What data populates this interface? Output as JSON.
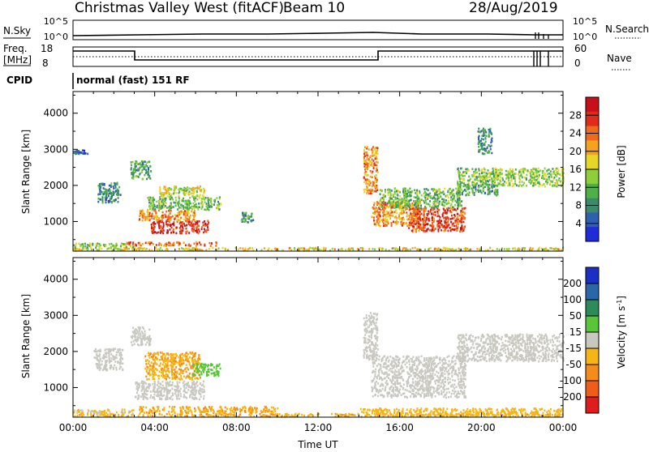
{
  "header": {
    "station": "Christmas Valley West (fitACF)",
    "beam": "Beam 10",
    "date": "28/Aug/2019"
  },
  "panels": {
    "nsky_label": "N.Sky",
    "nsearch_label": "N.Search",
    "freq_label_line1": "Freq.",
    "freq_label_line2": "[MHz]",
    "nave_label": "Nave",
    "cpid_label": "CPID",
    "cpid_value": "normal (fast) 151 RF",
    "noise_ticks_left": [
      "10^5",
      "10^0"
    ],
    "noise_ticks_right": [
      "10^5",
      "10^0"
    ],
    "freq_ticks": [
      "18",
      "8"
    ],
    "nave_ticks": [
      "60",
      "0"
    ]
  },
  "chart_data": [
    {
      "type": "heatmap",
      "title": "",
      "xlabel": "Time UT",
      "ylabel": "Slant Range [km]",
      "colorbar_label": "Power [dB]",
      "x_ticks": [
        "00:00",
        "04:00",
        "08:00",
        "12:00",
        "16:00",
        "20:00",
        "00:00"
      ],
      "y_ticks": [
        1000,
        2000,
        3000,
        4000
      ],
      "ylim": [
        180,
        4600
      ],
      "xlim_hours": [
        0,
        24
      ],
      "colorbar_ticks": [
        4,
        8,
        12,
        16,
        20,
        24,
        28
      ],
      "colorbar_range": [
        0,
        32
      ],
      "colorbar_colors": [
        "#1f2dd6",
        "#2f5fb0",
        "#3c8a6c",
        "#4fb04a",
        "#8ccf3a",
        "#e6d628",
        "#f5a21f",
        "#f06a1c",
        "#e02a1a",
        "#c8101a"
      ],
      "regions": [
        {
          "t": [
            0.0,
            24.0
          ],
          "r": [
            220,
            300
          ],
          "value": 18
        },
        {
          "t": [
            0.0,
            3.0
          ],
          "r": [
            300,
            420
          ],
          "value": 14
        },
        {
          "t": [
            2.5,
            7.0
          ],
          "r": [
            350,
            450
          ],
          "value": 24
        },
        {
          "t": [
            3.8,
            6.6
          ],
          "r": [
            700,
            1050
          ],
          "value": 28
        },
        {
          "t": [
            3.2,
            6.0
          ],
          "r": [
            1050,
            1350
          ],
          "value": 22
        },
        {
          "t": [
            3.6,
            7.2
          ],
          "r": [
            1350,
            1700
          ],
          "value": 12
        },
        {
          "t": [
            4.2,
            6.4
          ],
          "r": [
            1700,
            2000
          ],
          "value": 16
        },
        {
          "t": [
            1.2,
            2.3
          ],
          "r": [
            1550,
            2100
          ],
          "value": 8
        },
        {
          "t": [
            2.8,
            3.8
          ],
          "r": [
            2200,
            2700
          ],
          "value": 10
        },
        {
          "t": [
            8.2,
            8.8
          ],
          "r": [
            1000,
            1300
          ],
          "value": 10
        },
        {
          "t": [
            14.2,
            14.9
          ],
          "r": [
            1800,
            3100
          ],
          "value": 22
        },
        {
          "t": [
            14.6,
            17.0
          ],
          "r": [
            900,
            1600
          ],
          "value": 22
        },
        {
          "t": [
            16.4,
            19.2
          ],
          "r": [
            750,
            1400
          ],
          "value": 26
        },
        {
          "t": [
            15.0,
            19.0
          ],
          "r": [
            1400,
            1950
          ],
          "value": 12
        },
        {
          "t": [
            18.8,
            24.0
          ],
          "r": [
            2000,
            2500
          ],
          "value": 14
        },
        {
          "t": [
            18.8,
            20.8
          ],
          "r": [
            1750,
            2050
          ],
          "value": 10
        },
        {
          "t": [
            0.0,
            0.7
          ],
          "r": [
            2900,
            3000
          ],
          "value": 6
        },
        {
          "t": [
            19.8,
            20.5
          ],
          "r": [
            2900,
            3600
          ],
          "value": 8
        }
      ]
    },
    {
      "type": "heatmap",
      "title": "",
      "xlabel": "Time UT",
      "ylabel": "Slant Range [km]",
      "colorbar_label": "Velocity [m s^-1]",
      "x_ticks": [
        "00:00",
        "04:00",
        "08:00",
        "12:00",
        "16:00",
        "20:00",
        "00:00"
      ],
      "y_ticks": [
        1000,
        2000,
        3000,
        4000
      ],
      "ylim": [
        180,
        4600
      ],
      "xlim_hours": [
        0,
        24
      ],
      "colorbar_ticks": [
        "200",
        "100",
        "50",
        "15",
        "-15",
        "-50",
        "-100",
        "-200"
      ],
      "colorbar_colors": [
        "#1c2fc4",
        "#2b66a8",
        "#2f8a5a",
        "#58c53a",
        "#c8c8c0",
        "#f5b516",
        "#f58b18",
        "#f05d18",
        "#e01d1d"
      ],
      "regions": [
        {
          "t": [
            0.0,
            24.0
          ],
          "r": [
            220,
            300
          ],
          "value": -40
        },
        {
          "t": [
            0.0,
            3.0
          ],
          "r": [
            300,
            420
          ],
          "value": -20
        },
        {
          "t": [
            3.2,
            10.0
          ],
          "r": [
            320,
            500
          ],
          "value": -45
        },
        {
          "t": [
            3.0,
            6.4
          ],
          "r": [
            700,
            1200
          ],
          "value": 0
        },
        {
          "t": [
            3.5,
            6.2
          ],
          "r": [
            1250,
            2000
          ],
          "value": -45
        },
        {
          "t": [
            5.8,
            7.2
          ],
          "r": [
            1350,
            1700
          ],
          "value": 30
        },
        {
          "t": [
            1.0,
            2.4
          ],
          "r": [
            1500,
            2100
          ],
          "value": 0
        },
        {
          "t": [
            2.8,
            3.8
          ],
          "r": [
            2200,
            2700
          ],
          "value": 0
        },
        {
          "t": [
            14.2,
            14.9
          ],
          "r": [
            1800,
            3100
          ],
          "value": 0
        },
        {
          "t": [
            14.6,
            19.2
          ],
          "r": [
            750,
            1900
          ],
          "value": 0
        },
        {
          "t": [
            18.8,
            24.0
          ],
          "r": [
            1750,
            2500
          ],
          "value": 0
        },
        {
          "t": [
            14.0,
            24.0
          ],
          "r": [
            250,
            450
          ],
          "value": -30
        }
      ]
    }
  ]
}
